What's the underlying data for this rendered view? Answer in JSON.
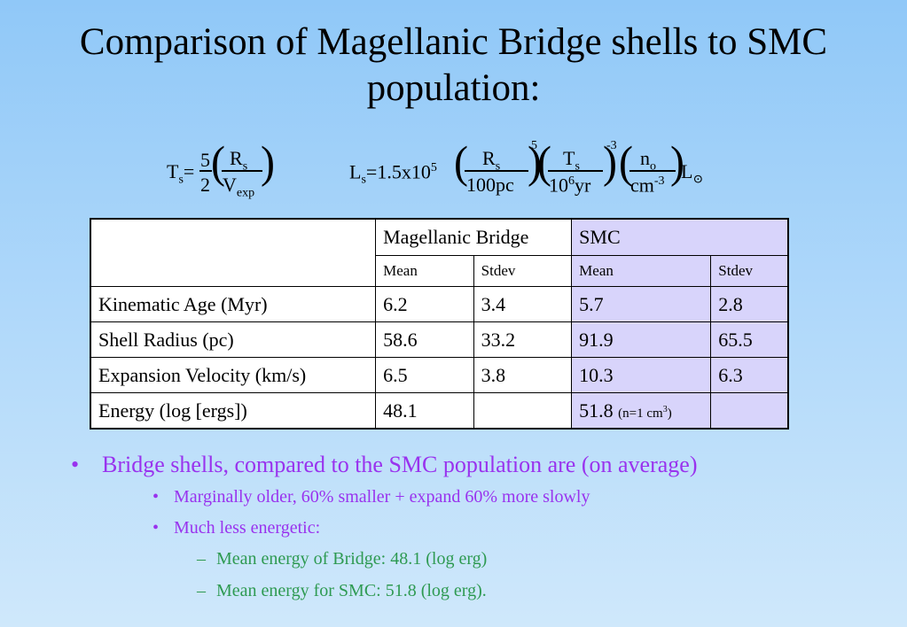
{
  "title": "Comparison of Magellanic Bridge shells to SMC population:",
  "formula1": {
    "lhs": "T",
    "lhs_sub": "s",
    "eq": "=",
    "num": "5",
    "den": "2",
    "r": "R",
    "r_sub": "s",
    "v": "V",
    "v_sub": "exp"
  },
  "formula2": {
    "lhs": "L",
    "lhs_sub": "s",
    "coef": "=1.5x10",
    "coef_exp": "5",
    "f1_num": "R",
    "f1_num_sub": "s",
    "f1_den": "100pc",
    "f1_exp": "5",
    "f2_num": "T",
    "f2_num_sub": "s",
    "f2_den_a": "10",
    "f2_den_exp": "6",
    "f2_den_b": "yr",
    "f2_exp": "-3",
    "f3_num": "n",
    "f3_num_sub": "o",
    "f3_den": "cm",
    "f3_den_exp": "-3",
    "tail": "L",
    "sun": "⊙"
  },
  "table": {
    "group_headers": [
      "Magellanic Bridge",
      "SMC"
    ],
    "sub_headers": [
      "Mean",
      "Stdev",
      "Mean",
      "Stdev"
    ],
    "rows": [
      {
        "label": "Kinematic Age (Myr)",
        "mb_mean": "6.2",
        "mb_stdev": "3.4",
        "smc_mean": "5.7",
        "smc_stdev": "2.8"
      },
      {
        "label": "Shell Radius (pc)",
        "mb_mean": "58.6",
        "mb_stdev": "33.2",
        "smc_mean": "91.9",
        "smc_stdev": "65.5"
      },
      {
        "label": "Expansion Velocity (km/s)",
        "mb_mean": "6.5",
        "mb_stdev": "3.8",
        "smc_mean": "10.3",
        "smc_stdev": "6.3"
      },
      {
        "label": "Energy (log [ergs])",
        "mb_mean": "48.1",
        "mb_stdev": "",
        "smc_mean": "51.8",
        "smc_stdev": ""
      }
    ],
    "energy_note": "(n=1 cm",
    "energy_note_exp": "3",
    "energy_note_close": ")"
  },
  "bullets": {
    "main": "Bridge shells, compared to the SMC population are (on average)",
    "sub1": "Marginally older, 60% smaller + expand 60% more slowly",
    "sub2": "Much less energetic:",
    "subsub1": "Mean energy of Bridge: 48.1 (log erg)",
    "subsub2": "Mean energy for SMC: 51.8 (log erg).",
    "bullet_char": "•",
    "dash_char": "–"
  },
  "colors": {
    "bullet_purple": "#9933ee",
    "bullet_green": "#2e9a52",
    "smc_fill": "#d8d4fb"
  }
}
